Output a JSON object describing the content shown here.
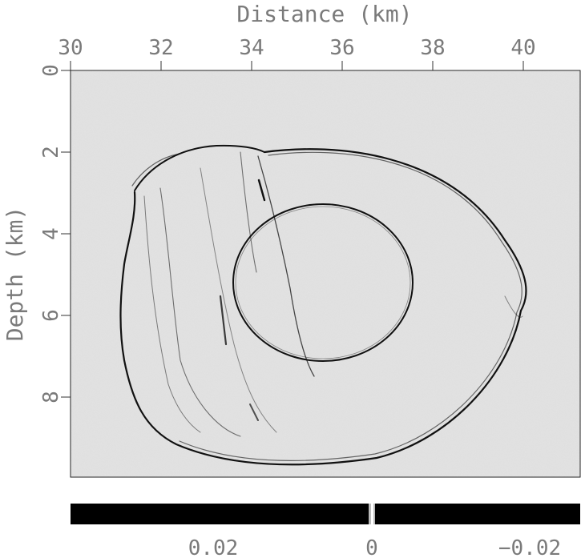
{
  "figure": {
    "x_axis": {
      "label": "Distance (km)",
      "ticks": [
        "30",
        "32",
        "34",
        "36",
        "38",
        "40"
      ],
      "range": [
        30,
        41.3
      ]
    },
    "y_axis": {
      "label": "Depth (km)",
      "ticks": [
        "0",
        "2",
        "4",
        "6",
        "8"
      ],
      "range": [
        0,
        10
      ]
    },
    "colorbar": {
      "ticks": [
        "0.02",
        "0",
        "−0.02"
      ]
    },
    "colors": {
      "panel_background": "#e2e2e2",
      "reflector": "#111111",
      "label_text": "#7a7a7a"
    }
  }
}
